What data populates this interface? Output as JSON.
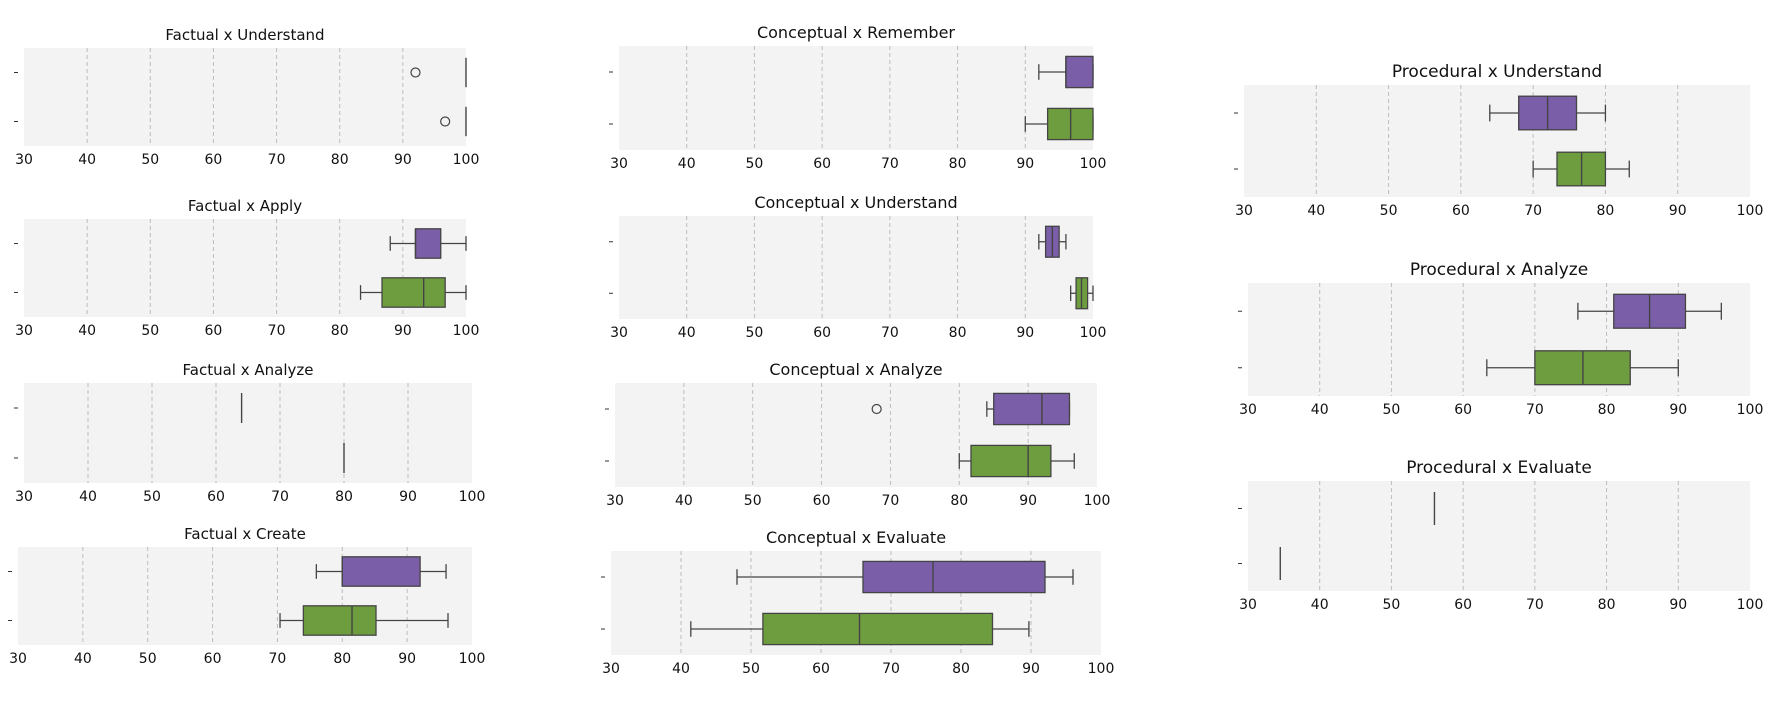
{
  "colors": {
    "series_a": "#7a5ea8",
    "series_b": "#6e9d3f",
    "panel_background": "#f3f3f3",
    "grid": "#bdbdbd",
    "line": "#444444"
  },
  "chart_data": [
    {
      "type": "boxplot",
      "orientation": "horizontal",
      "title": "Factual x Understand",
      "xlim": [
        30,
        100
      ],
      "xticks": [
        30,
        40,
        50,
        60,
        70,
        80,
        90,
        100
      ],
      "grid": "x",
      "boxes": [
        {
          "color": "series_a",
          "min": 100,
          "q1": 100,
          "median": 100,
          "q3": 100,
          "max": 100,
          "outliers": [
            92
          ]
        },
        {
          "color": "series_b",
          "min": 100,
          "q1": 100,
          "median": 100,
          "q3": 100,
          "max": 100,
          "outliers": [
            96.7
          ]
        }
      ]
    },
    {
      "type": "boxplot",
      "orientation": "horizontal",
      "title": "Factual x Apply",
      "xlim": [
        30,
        100
      ],
      "xticks": [
        30,
        40,
        50,
        60,
        70,
        80,
        90,
        100
      ],
      "grid": "x",
      "boxes": [
        {
          "color": "series_a",
          "min": 88,
          "q1": 92,
          "median": 92,
          "q3": 96,
          "max": 100,
          "outliers": []
        },
        {
          "color": "series_b",
          "min": 83.3,
          "q1": 86.7,
          "median": 93.3,
          "q3": 96.7,
          "max": 100,
          "outliers": []
        }
      ]
    },
    {
      "type": "boxplot",
      "orientation": "horizontal",
      "title": "Factual x Analyze",
      "xlim": [
        30,
        100
      ],
      "xticks": [
        30,
        40,
        50,
        60,
        70,
        80,
        90,
        100
      ],
      "grid": "x",
      "boxes": [
        {
          "color": "series_a",
          "min": 64,
          "q1": 64,
          "median": 64,
          "q3": 64,
          "max": 64,
          "outliers": []
        },
        {
          "color": "series_b",
          "min": 80,
          "q1": 80,
          "median": 80,
          "q3": 80,
          "max": 80,
          "outliers": []
        }
      ]
    },
    {
      "type": "boxplot",
      "orientation": "horizontal",
      "title": "Factual x Create",
      "xlim": [
        30,
        100
      ],
      "xticks": [
        30,
        40,
        50,
        60,
        70,
        80,
        90,
        100
      ],
      "grid": "x",
      "boxes": [
        {
          "color": "series_a",
          "min": 76,
          "q1": 80,
          "median": 80,
          "q3": 92,
          "max": 96,
          "outliers": []
        },
        {
          "color": "series_b",
          "min": 70.4,
          "q1": 74,
          "median": 81.5,
          "q3": 85.2,
          "max": 96.3,
          "outliers": []
        }
      ]
    },
    {
      "type": "boxplot",
      "orientation": "horizontal",
      "title": "Conceptual x Remember",
      "xlim": [
        30,
        100
      ],
      "xticks": [
        30,
        40,
        50,
        60,
        70,
        80,
        90,
        100
      ],
      "grid": "x",
      "boxes": [
        {
          "color": "series_a",
          "min": 92,
          "q1": 96,
          "median": 96,
          "q3": 100,
          "max": 100,
          "outliers": []
        },
        {
          "color": "series_b",
          "min": 90,
          "q1": 93.3,
          "median": 96.7,
          "q3": 100,
          "max": 100,
          "outliers": []
        }
      ]
    },
    {
      "type": "boxplot",
      "orientation": "horizontal",
      "title": "Conceptual x Understand",
      "xlim": [
        30,
        100
      ],
      "xticks": [
        30,
        40,
        50,
        60,
        70,
        80,
        90,
        100
      ],
      "grid": "x",
      "boxes": [
        {
          "color": "series_a",
          "min": 92,
          "q1": 93,
          "median": 94,
          "q3": 95,
          "max": 96,
          "outliers": []
        },
        {
          "color": "series_b",
          "min": 96.7,
          "q1": 97.5,
          "median": 98.3,
          "q3": 99.2,
          "max": 100,
          "outliers": []
        }
      ]
    },
    {
      "type": "boxplot",
      "orientation": "horizontal",
      "title": "Conceptual x Analyze",
      "xlim": [
        30,
        100
      ],
      "xticks": [
        30,
        40,
        50,
        60,
        70,
        80,
        90,
        100
      ],
      "grid": "x",
      "boxes": [
        {
          "color": "series_a",
          "min": 84,
          "q1": 85,
          "median": 92,
          "q3": 96,
          "max": 96,
          "outliers": [
            68
          ]
        },
        {
          "color": "series_b",
          "min": 80,
          "q1": 81.7,
          "median": 90,
          "q3": 93.3,
          "max": 96.7,
          "outliers": []
        }
      ]
    },
    {
      "type": "boxplot",
      "orientation": "horizontal",
      "title": "Conceptual x Evaluate",
      "xlim": [
        30,
        100
      ],
      "xticks": [
        30,
        40,
        50,
        60,
        70,
        80,
        90,
        100
      ],
      "grid": "x",
      "boxes": [
        {
          "color": "series_a",
          "min": 48,
          "q1": 66,
          "median": 76,
          "q3": 92,
          "max": 96,
          "outliers": []
        },
        {
          "color": "series_b",
          "min": 41.4,
          "q1": 51.7,
          "median": 65.5,
          "q3": 84.5,
          "max": 89.7,
          "outliers": []
        }
      ]
    },
    {
      "type": "boxplot",
      "orientation": "horizontal",
      "title": "Procedural x Understand",
      "xlim": [
        30,
        100
      ],
      "xticks": [
        30,
        40,
        50,
        60,
        70,
        80,
        90,
        100
      ],
      "grid": "x",
      "boxes": [
        {
          "color": "series_a",
          "min": 64,
          "q1": 68,
          "median": 72,
          "q3": 76,
          "max": 80,
          "outliers": []
        },
        {
          "color": "series_b",
          "min": 70,
          "q1": 73.3,
          "median": 76.7,
          "q3": 80,
          "max": 83.3,
          "outliers": []
        }
      ]
    },
    {
      "type": "boxplot",
      "orientation": "horizontal",
      "title": "Procedural x Analyze",
      "xlim": [
        30,
        100
      ],
      "xticks": [
        30,
        40,
        50,
        60,
        70,
        80,
        90,
        100
      ],
      "grid": "x",
      "boxes": [
        {
          "color": "series_a",
          "min": 76,
          "q1": 81,
          "median": 86,
          "q3": 91,
          "max": 96,
          "outliers": []
        },
        {
          "color": "series_b",
          "min": 63.3,
          "q1": 70,
          "median": 76.7,
          "q3": 83.3,
          "max": 90,
          "outliers": []
        }
      ]
    },
    {
      "type": "boxplot",
      "orientation": "horizontal",
      "title": "Procedural x Evaluate",
      "xlim": [
        30,
        100
      ],
      "xticks": [
        30,
        40,
        50,
        60,
        70,
        80,
        90,
        100
      ],
      "grid": "x",
      "boxes": [
        {
          "color": "series_a",
          "min": 56,
          "q1": 56,
          "median": 56,
          "q3": 56,
          "max": 56,
          "outliers": []
        },
        {
          "color": "series_b",
          "min": 34.5,
          "q1": 34.5,
          "median": 34.5,
          "q3": 34.5,
          "max": 34.5,
          "outliers": []
        }
      ]
    }
  ]
}
